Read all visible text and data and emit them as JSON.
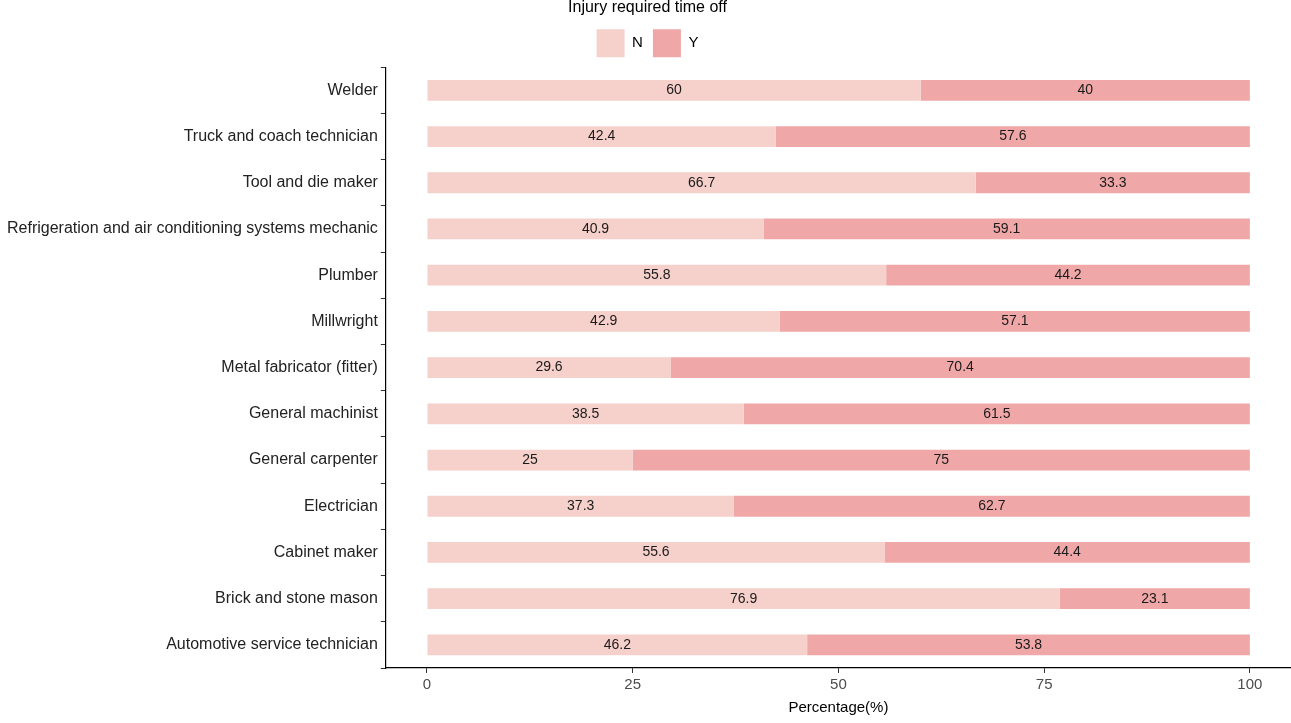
{
  "chart_data": {
    "type": "bar",
    "orientation": "horizontal",
    "stacked": true,
    "xlabel": "Percentage(%)",
    "legend_title": "Injury required time off",
    "legend": "top",
    "grid": false,
    "data_labels": true,
    "categories": [
      "Welder",
      "Truck and coach technician",
      "Tool and die maker",
      "Refrigeration and air conditioning systems mechanic",
      "Plumber",
      "Millwright",
      "Metal fabricator (fitter)",
      "General machinist",
      "General carpenter",
      "Electrician",
      "Cabinet maker",
      "Brick and stone mason",
      "Automotive service technician"
    ],
    "series": [
      {
        "name": "N",
        "color": "#f6d0cb",
        "values": [
          60,
          42.4,
          66.7,
          40.9,
          55.8,
          42.9,
          29.6,
          38.5,
          25,
          37.3,
          55.6,
          76.9,
          46.2
        ]
      },
      {
        "name": "Y",
        "color": "#f0a7a8",
        "values": [
          40,
          57.6,
          33.3,
          59.1,
          44.2,
          57.1,
          70.4,
          61.5,
          75,
          62.7,
          44.4,
          23.1,
          53.8
        ]
      }
    ],
    "xlim": [
      -5,
      105
    ],
    "xticks": [
      0,
      25,
      50,
      75,
      100
    ]
  }
}
